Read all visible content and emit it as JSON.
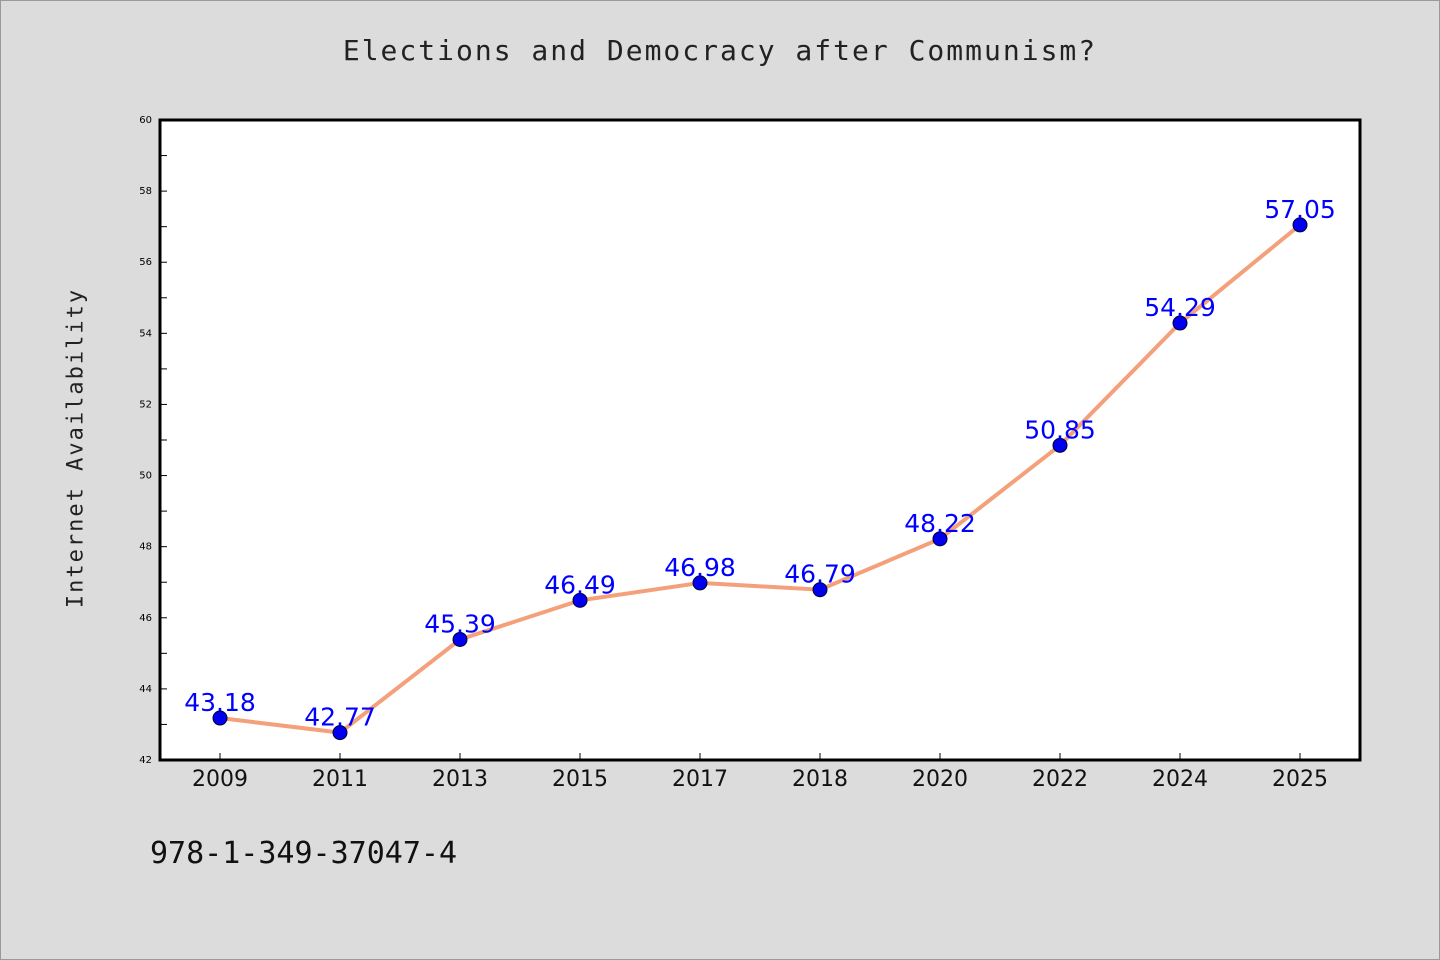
{
  "header": {
    "title": "Elections and Democracy after Communism?"
  },
  "footer": {
    "isbn": "978-1-349-37047-4"
  },
  "colors": {
    "background": "#dcdcdc",
    "plot_background": "#ffffff",
    "line": "#f4a07a",
    "marker": "#0000ee",
    "data_label": "#0000ff",
    "axis": "#000000"
  },
  "chart_data": {
    "type": "line",
    "title": "Elections and Democracy after Communism?",
    "xlabel": "",
    "ylabel": "Internet Availability",
    "categories": [
      "2009",
      "2011",
      "2013",
      "2015",
      "2017",
      "2018",
      "2020",
      "2022",
      "2024",
      "2025"
    ],
    "series": [
      {
        "values": [
          43.18,
          42.77,
          45.39,
          46.49,
          46.98,
          46.79,
          48.22,
          50.85,
          54.29,
          57.05
        ]
      }
    ],
    "ylim": [
      42,
      60
    ],
    "yticks": [
      42,
      44,
      46,
      48,
      50,
      52,
      54,
      56,
      58,
      60
    ],
    "grid": false,
    "legend": "none",
    "data_labels": true
  }
}
